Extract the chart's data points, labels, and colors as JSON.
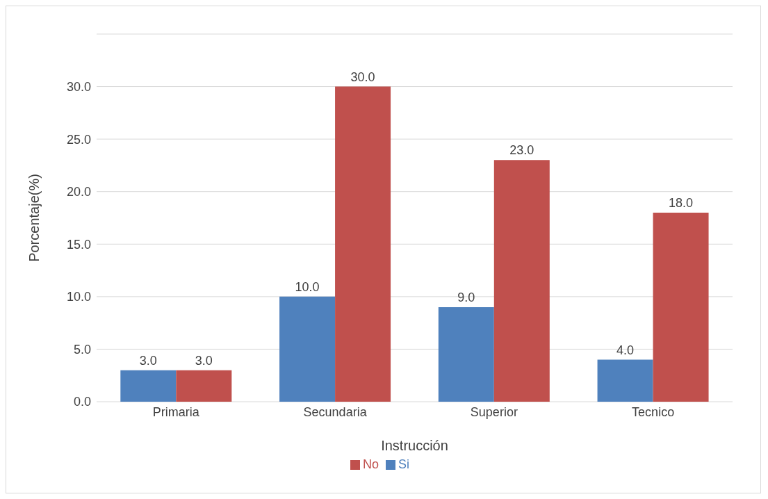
{
  "chart_data": {
    "type": "bar",
    "xlabel": "Instrucción",
    "ylabel": "Porcentaje(%)",
    "categories": [
      "Primaria",
      "Secundaria",
      "Superior",
      "Tecnico"
    ],
    "series": [
      {
        "name": "Si",
        "color": "#4f81bd",
        "values": [
          3,
          10,
          9,
          4
        ],
        "value_labels": [
          "3.0",
          "10.0",
          "9.0",
          "4.0"
        ]
      },
      {
        "name": "No",
        "color": "#c0504d",
        "values": [
          3,
          30,
          23,
          18
        ],
        "value_labels": [
          "3.0",
          "30.0",
          "23.0",
          "18.0"
        ]
      }
    ],
    "ylim": [
      0,
      35
    ],
    "yticks": [
      {
        "value": 0,
        "label": "0.0"
      },
      {
        "value": 5,
        "label": "5.0"
      },
      {
        "value": 10,
        "label": "10.0"
      },
      {
        "value": 15,
        "label": "15.0"
      },
      {
        "value": 20,
        "label": "20.0"
      },
      {
        "value": 25,
        "label": "25.0"
      },
      {
        "value": 30,
        "label": "30.0"
      },
      {
        "value": 35,
        "label": null
      }
    ],
    "grid": "y",
    "legend": "bottom"
  }
}
